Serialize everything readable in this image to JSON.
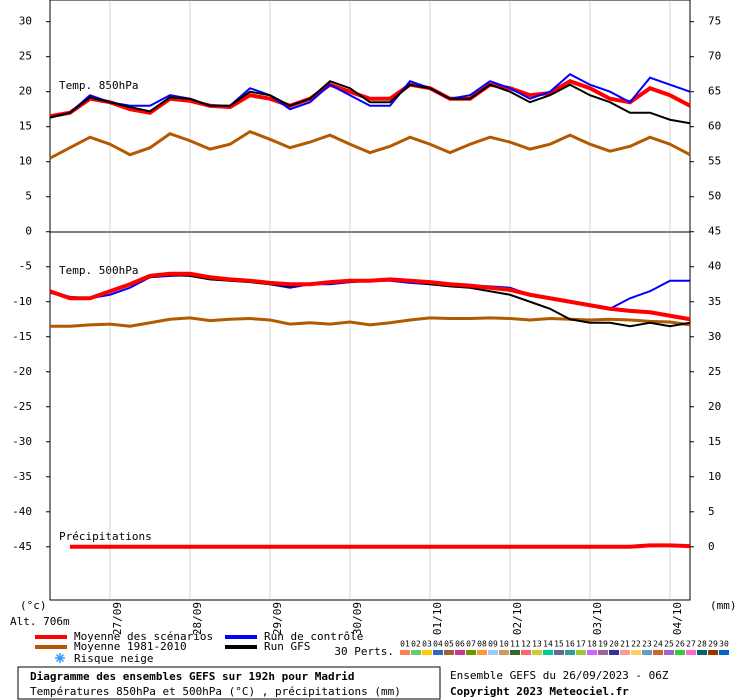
{
  "chart_data": {
    "type": "line",
    "xlim": [
      0,
      192
    ],
    "xticks": [
      {
        "value": 18,
        "label": "27/09"
      },
      {
        "value": 42,
        "label": "28/09"
      },
      {
        "value": 66,
        "label": "29/09"
      },
      {
        "value": 90,
        "label": "30/09"
      },
      {
        "value": 114,
        "label": "01/10"
      },
      {
        "value": 138,
        "label": "02/10"
      },
      {
        "value": 162,
        "label": "03/10"
      },
      {
        "value": 186,
        "label": "04/10"
      }
    ],
    "ylim": [
      -52.6,
      33.1
    ],
    "yticks": [
      30,
      25,
      20,
      15,
      10,
      5,
      0,
      -5,
      -10,
      -15,
      -20,
      -25,
      -30,
      -35,
      -40,
      -45
    ],
    "y2lim": [
      -7.6,
      78.1
    ],
    "y2ticks": [
      75,
      70,
      65,
      60,
      55,
      50,
      45,
      40,
      35,
      30,
      25,
      20,
      15,
      10,
      5,
      0
    ],
    "ylabel": "(°c)",
    "y2label": "(mm)",
    "annotations": [
      "Temp. 850hPa",
      "Temp. 500hPa",
      "Précipitations",
      "Alt. 706m"
    ],
    "x": [
      0,
      6,
      12,
      18,
      24,
      30,
      36,
      42,
      48,
      54,
      60,
      66,
      72,
      78,
      84,
      90,
      96,
      102,
      108,
      114,
      120,
      126,
      132,
      138,
      144,
      150,
      156,
      162,
      168,
      174,
      180,
      186,
      192
    ],
    "series": [
      {
        "name": "Moyenne des scénarios",
        "color": "#ff0000",
        "values": [
          16.5,
          17,
          19,
          18.5,
          17.5,
          17,
          19,
          18.7,
          18,
          17.8,
          19.5,
          19,
          18,
          19,
          21,
          20,
          19,
          19,
          21,
          20.5,
          19,
          19,
          21,
          20.5,
          19.5,
          19.8,
          21.5,
          20.5,
          19,
          18.5,
          20.5,
          19.5,
          18
        ]
      },
      {
        "name": "Moyenne 1981-2010",
        "color": "#b35900",
        "values": [
          10.5,
          12,
          13.5,
          12.5,
          11,
          12,
          14,
          13,
          11.8,
          12.5,
          14.3,
          13.2,
          12,
          12.8,
          13.8,
          12.5,
          11.3,
          12.2,
          13.5,
          12.5,
          11.3,
          12.5,
          13.5,
          12.8,
          11.8,
          12.5,
          13.8,
          12.5,
          11.5,
          12.2,
          13.5,
          12.5,
          11
        ]
      },
      {
        "name": "Run de contrôle",
        "color": "#0000ff",
        "values": [
          16.3,
          17,
          19.5,
          18.5,
          18,
          18,
          19.5,
          19,
          18,
          18,
          20.5,
          19.5,
          17.5,
          18.5,
          21,
          19.5,
          18,
          18,
          21.5,
          20.5,
          19,
          19.5,
          21.5,
          20.5,
          19,
          20,
          22.5,
          21,
          20,
          18.5,
          22,
          21,
          20
        ]
      },
      {
        "name": "Run GFS",
        "color": "#000000",
        "values": [
          16.3,
          17,
          19.2,
          18.5,
          17.8,
          17.2,
          19.2,
          19,
          18,
          18,
          20,
          19.5,
          18,
          19,
          21.5,
          20.5,
          18.5,
          18.5,
          21,
          20.5,
          19,
          19,
          21,
          20,
          18.5,
          19.5,
          21,
          19.5,
          18.5,
          17,
          17,
          16,
          15.5
        ]
      },
      {
        "color": "#b35900",
        "values": [
          -13.5,
          -13.5,
          -13.3,
          -13.2,
          -13.5,
          -13,
          -12.5,
          -12.3,
          -12.7,
          -12.5,
          -12.4,
          -12.6,
          -13.2,
          -13,
          -13.2,
          -12.9,
          -13.3,
          -13,
          -12.6,
          -12.3,
          -12.4,
          -12.4,
          -12.3,
          -12.4,
          -12.6,
          -12.4,
          -12.5,
          -12.6,
          -12.5,
          -12.6,
          -12.8,
          -12.9,
          -13.3
        ]
      },
      {
        "color": "#0000ff",
        "values": [
          -8.5,
          -9.3,
          -9.5,
          -9,
          -8,
          -6.5,
          -6.3,
          -6.2,
          -6.7,
          -7,
          -7,
          -7.5,
          -8,
          -7.5,
          -7.5,
          -7.2,
          -7,
          -7,
          -7.3,
          -7.5,
          -7.5,
          -7.7,
          -7.8,
          -8,
          -9,
          -9.5,
          -10,
          -10.5,
          -11,
          -9.5,
          -8.5,
          -7,
          -7
        ]
      },
      {
        "color": "#000000",
        "values": [
          -8.7,
          -9.5,
          -9.5,
          -8.5,
          -7.5,
          -6.5,
          -6.2,
          -6.3,
          -6.8,
          -7,
          -7.2,
          -7.5,
          -7.8,
          -7.5,
          -7.2,
          -7.2,
          -7,
          -6.8,
          -7,
          -7.5,
          -7.8,
          -8,
          -8.5,
          -9,
          -10,
          -11,
          -12.5,
          -13,
          -13,
          -13.5,
          -13,
          -13.5,
          -13
        ]
      },
      {
        "color": "#ff0000",
        "values": [
          -8.5,
          -9.5,
          -9.5,
          -8.5,
          -7.5,
          -6.3,
          -6,
          -6,
          -6.5,
          -6.8,
          -7,
          -7.3,
          -7.5,
          -7.5,
          -7.2,
          -7,
          -7,
          -6.8,
          -7,
          -7.2,
          -7.5,
          -7.7,
          -8,
          -8.3,
          -9,
          -9.5,
          -10,
          -10.5,
          -11,
          -11.3,
          -11.5,
          -12,
          -12.5
        ]
      },
      {
        "color": "#ff0000",
        "axis": "y2",
        "values": [
          null,
          0,
          0,
          0,
          0,
          0,
          0,
          0,
          0,
          0,
          0,
          0,
          0,
          0,
          0,
          0,
          0,
          0,
          0,
          0,
          0,
          0,
          0,
          0,
          0,
          0,
          0,
          0,
          0,
          0,
          0.2,
          0.2,
          0.1
        ]
      }
    ],
    "snow": {
      "name": "Risque neige",
      "color": "#3399ff"
    },
    "perts": {
      "label": "30 Perts.",
      "members": [
        {
          "name": "01",
          "color": "#ff7f50"
        },
        {
          "name": "02",
          "color": "#66cc66"
        },
        {
          "name": "03",
          "color": "#ffcc00"
        },
        {
          "name": "04",
          "color": "#3366cc"
        },
        {
          "name": "05",
          "color": "#996633"
        },
        {
          "name": "06",
          "color": "#cc3399"
        },
        {
          "name": "07",
          "color": "#669900"
        },
        {
          "name": "08",
          "color": "#ff9933"
        },
        {
          "name": "09",
          "color": "#99ccff"
        },
        {
          "name": "10",
          "color": "#cc9966"
        },
        {
          "name": "11",
          "color": "#336633"
        },
        {
          "name": "12",
          "color": "#ff6666"
        },
        {
          "name": "13",
          "color": "#cccc33"
        },
        {
          "name": "14",
          "color": "#00cc99"
        },
        {
          "name": "15",
          "color": "#666699"
        },
        {
          "name": "16",
          "color": "#339999"
        },
        {
          "name": "17",
          "color": "#99cc33"
        },
        {
          "name": "18",
          "color": "#cc66ff"
        },
        {
          "name": "19",
          "color": "#996699"
        },
        {
          "name": "20",
          "color": "#333399"
        },
        {
          "name": "21",
          "color": "#ff9999"
        },
        {
          "name": "22",
          "color": "#ffcc66"
        },
        {
          "name": "23",
          "color": "#6699cc"
        },
        {
          "name": "24",
          "color": "#cc6633"
        },
        {
          "name": "25",
          "color": "#9966cc"
        },
        {
          "name": "26",
          "color": "#33cc33"
        },
        {
          "name": "27",
          "color": "#ff66cc"
        },
        {
          "name": "28",
          "color": "#006666"
        },
        {
          "name": "29",
          "color": "#993300"
        },
        {
          "name": "30",
          "color": "#0066cc"
        }
      ]
    }
  },
  "footer": {
    "title": "Diagramme des ensembles GEFS sur 192h pour Madrid",
    "subtitle": "Températures 850hPa et 500hPa (°C) , précipitations (mm)",
    "run": "Ensemble GEFS du 26/09/2023 - 06Z",
    "copyright": "Copyright 2023 Meteociel.fr"
  }
}
